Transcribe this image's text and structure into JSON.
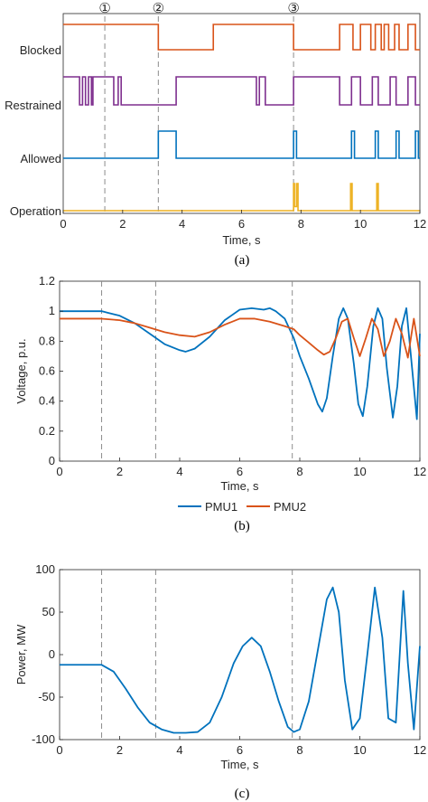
{
  "colors": {
    "blocked": "#d95319",
    "restrained": "#7e2f8e",
    "allowed": "#0072bd",
    "operation": "#edb120",
    "pmu1": "#0072bd",
    "pmu2": "#d95319",
    "power": "#0072bd",
    "axis": "#262626",
    "event_line": "#8c8c8c"
  },
  "chart_data": [
    {
      "id": "a",
      "type": "line",
      "caption": "(a)",
      "xlabel": "Time, s",
      "xlim": [
        0,
        12
      ],
      "xticks": [
        0,
        2,
        4,
        6,
        8,
        10,
        12
      ],
      "event_markers": [
        {
          "label": "①",
          "t": 1.4
        },
        {
          "label": "②",
          "t": 3.2
        },
        {
          "label": "③",
          "t": 7.75
        }
      ],
      "series": [
        {
          "name": "Blocked",
          "color_key": "blocked",
          "steps": [
            [
              0,
              1
            ],
            [
              3.2,
              0
            ],
            [
              5.05,
              1
            ],
            [
              7.75,
              0
            ],
            [
              9.3,
              1
            ],
            [
              9.75,
              0
            ],
            [
              10.0,
              1
            ],
            [
              10.35,
              0
            ],
            [
              10.5,
              1
            ],
            [
              10.7,
              0
            ],
            [
              10.8,
              1
            ],
            [
              10.95,
              0
            ],
            [
              11.15,
              1
            ],
            [
              11.3,
              0
            ],
            [
              11.6,
              1
            ],
            [
              11.85,
              0
            ],
            [
              12,
              0
            ]
          ]
        },
        {
          "name": "Restrained",
          "color_key": "restrained",
          "steps": [
            [
              0,
              1
            ],
            [
              0.55,
              0
            ],
            [
              0.65,
              1
            ],
            [
              0.75,
              0
            ],
            [
              0.85,
              1
            ],
            [
              0.95,
              0
            ],
            [
              1.0,
              1
            ],
            [
              1.7,
              0
            ],
            [
              1.85,
              1
            ],
            [
              1.95,
              0
            ],
            [
              3.8,
              1
            ],
            [
              6.5,
              0
            ],
            [
              6.6,
              1
            ],
            [
              6.8,
              0
            ],
            [
              7.75,
              1
            ],
            [
              9.3,
              0
            ],
            [
              9.7,
              1
            ],
            [
              10.0,
              0
            ],
            [
              10.4,
              1
            ],
            [
              10.6,
              0
            ],
            [
              11.0,
              1
            ],
            [
              11.2,
              0
            ],
            [
              11.6,
              1
            ],
            [
              11.85,
              0
            ],
            [
              12,
              0
            ]
          ]
        },
        {
          "name": "Allowed",
          "color_key": "allowed",
          "steps": [
            [
              0,
              0
            ],
            [
              3.2,
              1
            ],
            [
              3.8,
              0
            ],
            [
              7.75,
              1
            ],
            [
              7.85,
              0
            ],
            [
              9.7,
              1
            ],
            [
              9.8,
              0
            ],
            [
              10.5,
              1
            ],
            [
              10.6,
              0
            ],
            [
              11.2,
              1
            ],
            [
              11.3,
              0
            ],
            [
              11.85,
              1
            ],
            [
              11.95,
              0
            ],
            [
              12,
              0
            ]
          ]
        },
        {
          "name": "Operation",
          "color_key": "operation",
          "steps": [
            [
              0,
              0
            ],
            [
              7.75,
              1
            ],
            [
              7.78,
              0.15
            ],
            [
              7.85,
              1
            ],
            [
              7.9,
              0
            ],
            [
              9.67,
              1
            ],
            [
              9.72,
              0
            ],
            [
              10.55,
              1
            ],
            [
              10.6,
              0
            ],
            [
              12,
              0
            ]
          ]
        }
      ]
    },
    {
      "id": "b",
      "type": "line",
      "caption": "(b)",
      "xlabel": "Time, s",
      "ylabel": "Voltage, p.u.",
      "xlim": [
        0,
        12
      ],
      "ylim": [
        0,
        1.2
      ],
      "xticks": [
        0,
        2,
        4,
        6,
        8,
        10,
        12
      ],
      "yticks": [
        0,
        0.2,
        0.4,
        0.6,
        0.8,
        1,
        1.2
      ],
      "yticklabels": [
        "0",
        "0.2",
        "0.4",
        "0.6",
        "0.8",
        "1",
        "1.2"
      ],
      "event_lines": [
        1.4,
        3.2,
        7.75
      ],
      "legend": {
        "position": "bottom-outside",
        "entries": [
          "PMU1",
          "PMU2"
        ]
      },
      "series": [
        {
          "name": "PMU1",
          "color_key": "pmu1",
          "x": [
            0,
            1.4,
            1.6,
            2.0,
            2.5,
            3.0,
            3.5,
            4.0,
            4.2,
            4.5,
            5.0,
            5.5,
            6.0,
            6.4,
            6.8,
            7.0,
            7.2,
            7.5,
            7.8,
            8.0,
            8.3,
            8.6,
            8.75,
            8.9,
            9.1,
            9.3,
            9.45,
            9.6,
            9.8,
            9.95,
            10.1,
            10.25,
            10.45,
            10.6,
            10.75,
            10.9,
            11.1,
            11.25,
            11.4,
            11.55,
            11.75,
            11.9,
            12.0
          ],
          "y": [
            1.0,
            1.0,
            0.99,
            0.97,
            0.92,
            0.85,
            0.78,
            0.74,
            0.73,
            0.75,
            0.83,
            0.94,
            1.01,
            1.02,
            1.01,
            1.02,
            1.0,
            0.95,
            0.82,
            0.7,
            0.55,
            0.38,
            0.33,
            0.42,
            0.7,
            0.95,
            1.02,
            0.95,
            0.65,
            0.38,
            0.3,
            0.5,
            0.9,
            1.02,
            0.95,
            0.62,
            0.29,
            0.5,
            0.9,
            1.02,
            0.6,
            0.28,
            0.85
          ]
        },
        {
          "name": "PMU2",
          "color_key": "pmu2",
          "x": [
            0,
            1.4,
            2.0,
            2.5,
            3.0,
            3.5,
            4.0,
            4.5,
            5.0,
            5.5,
            6.0,
            6.5,
            7.0,
            7.5,
            7.8,
            8.0,
            8.3,
            8.6,
            8.8,
            9.0,
            9.2,
            9.4,
            9.6,
            9.8,
            10.0,
            10.2,
            10.4,
            10.6,
            10.8,
            11.0,
            11.2,
            11.4,
            11.6,
            11.8,
            12.0
          ],
          "y": [
            0.95,
            0.95,
            0.94,
            0.92,
            0.89,
            0.86,
            0.84,
            0.83,
            0.86,
            0.91,
            0.95,
            0.95,
            0.93,
            0.9,
            0.88,
            0.84,
            0.79,
            0.74,
            0.71,
            0.73,
            0.82,
            0.93,
            0.95,
            0.82,
            0.7,
            0.82,
            0.95,
            0.88,
            0.7,
            0.8,
            0.95,
            0.85,
            0.69,
            0.95,
            0.7
          ]
        }
      ]
    },
    {
      "id": "c",
      "type": "line",
      "caption": "(c)",
      "xlabel": "Time, s",
      "ylabel": "Power, MW",
      "xlim": [
        0,
        12
      ],
      "ylim": [
        -100,
        100
      ],
      "xticks": [
        0,
        2,
        4,
        6,
        8,
        10,
        12
      ],
      "yticks": [
        -100,
        -50,
        0,
        50,
        100
      ],
      "yticklabels": [
        "-100",
        "-50",
        "0",
        "50",
        "100"
      ],
      "event_lines": [
        1.4,
        3.2,
        7.75
      ],
      "series": [
        {
          "name": "Power",
          "color_key": "power",
          "x": [
            0,
            1.4,
            1.8,
            2.2,
            2.6,
            3.0,
            3.4,
            3.8,
            4.2,
            4.6,
            5.0,
            5.4,
            5.8,
            6.1,
            6.4,
            6.7,
            7.0,
            7.3,
            7.6,
            7.8,
            8.0,
            8.3,
            8.6,
            8.9,
            9.1,
            9.3,
            9.5,
            9.75,
            10.0,
            10.25,
            10.5,
            10.75,
            10.95,
            11.2,
            11.45,
            11.6,
            11.8,
            12.0
          ],
          "y": [
            -12,
            -12,
            -20,
            -40,
            -62,
            -80,
            -88,
            -92,
            -92,
            -91,
            -80,
            -50,
            -10,
            10,
            20,
            10,
            -20,
            -55,
            -85,
            -91,
            -88,
            -55,
            5,
            65,
            79,
            50,
            -30,
            -88,
            -75,
            0,
            79,
            20,
            -75,
            -80,
            75,
            -10,
            -88,
            10
          ]
        }
      ]
    }
  ]
}
